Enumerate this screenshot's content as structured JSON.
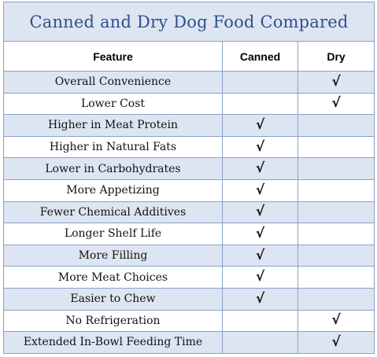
{
  "title": "Canned and Dry Dog Food Compared",
  "headers": {
    "feature": "Feature",
    "canned": "Canned",
    "dry": "Dry"
  },
  "check_symbol": "√",
  "rows": [
    {
      "feature": "Overall Convenience",
      "canned": "",
      "dry": "√"
    },
    {
      "feature": "Lower Cost",
      "canned": "",
      "dry": "√"
    },
    {
      "feature": "Higher in Meat Protein",
      "canned": "√",
      "dry": ""
    },
    {
      "feature": "Higher in Natural Fats",
      "canned": "√",
      "dry": ""
    },
    {
      "feature": "Lower in Carbohydrates",
      "canned": "√",
      "dry": ""
    },
    {
      "feature": "More Appetizing",
      "canned": "√",
      "dry": ""
    },
    {
      "feature": "Fewer Chemical Additives",
      "canned": "√",
      "dry": ""
    },
    {
      "feature": "Longer Shelf Life",
      "canned": "√",
      "dry": ""
    },
    {
      "feature": "More Filling",
      "canned": "√",
      "dry": ""
    },
    {
      "feature": "More Meat Choices",
      "canned": "√",
      "dry": ""
    },
    {
      "feature": "Easier to Chew",
      "canned": "√",
      "dry": ""
    },
    {
      "feature": "No Refrigeration",
      "canned": "",
      "dry": "√"
    },
    {
      "feature": "Extended In-Bowl Feeding Time",
      "canned": "",
      "dry": "√"
    }
  ],
  "colors": {
    "title_text": "#2f4f8f",
    "shade": "#dde5f2",
    "border": "#8aa1c7"
  }
}
